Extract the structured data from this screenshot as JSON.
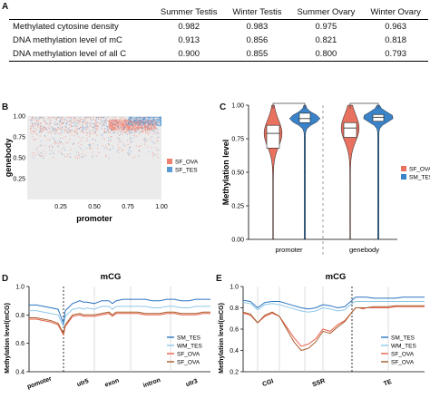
{
  "panels": {
    "a": "A",
    "b": "B",
    "c": "C",
    "d": "D",
    "e": "E"
  },
  "table": {
    "headers": [
      "",
      "Summer Testis",
      "Winter Testis",
      "Summer Ovary",
      "Winter Ovary"
    ],
    "rows": [
      [
        "Methylated cytosine density",
        "0.982",
        "0.983",
        "0.975",
        "0.963"
      ],
      [
        "DNA methylation level of mC",
        "0.913",
        "0.856",
        "0.821",
        "0.818"
      ],
      [
        "DNA methylation level of all C",
        "0.900",
        "0.855",
        "0.800",
        "0.793"
      ]
    ]
  },
  "chart_data": [
    {
      "id": "B",
      "type": "scatter",
      "xlabel": "promoter",
      "ylabel": "genebody",
      "xlim": [
        0,
        1
      ],
      "ylim": [
        0,
        1
      ],
      "xticks": [
        "0.25",
        "0.50",
        "0.75",
        "1.00"
      ],
      "yticks": [
        "0.25",
        "0.50",
        "0.75",
        "1.00"
      ],
      "legend_position": "right",
      "series": [
        {
          "name": "SF_OVA",
          "color": "#f08070",
          "density_center": [
            0.78,
            0.9
          ]
        },
        {
          "name": "SF_TES",
          "color": "#5b9bd5",
          "density_center": [
            0.92,
            0.95
          ]
        }
      ]
    },
    {
      "id": "C",
      "type": "violin",
      "ylabel": "Methylation level",
      "ylim": [
        0,
        1
      ],
      "yticks": [
        "0.00",
        "0.25",
        "0.50",
        "0.75",
        "1.00"
      ],
      "categories": [
        "promoter",
        "genebody"
      ],
      "legend_position": "right",
      "series": [
        {
          "name": "SF_OVA",
          "color": "#e8715f",
          "box": [
            [
              0.68,
              0.79,
              0.85
            ],
            [
              0.76,
              0.83,
              0.87
            ]
          ]
        },
        {
          "name": "SM_TES",
          "color": "#3a83c9",
          "box": [
            [
              0.87,
              0.9,
              0.94
            ],
            [
              0.88,
              0.91,
              0.93
            ]
          ]
        }
      ]
    },
    {
      "id": "D",
      "type": "line",
      "title": "mCG",
      "ylabel": "Methylation level(mCG)",
      "ylim": [
        0.4,
        1.0
      ],
      "yticks": [
        "0.4",
        "0.6",
        "0.8",
        "1.0"
      ],
      "xcategories": [
        "pomoter",
        "utr5",
        "exon",
        "intron",
        "utr3"
      ],
      "x": [
        0,
        4,
        8,
        12,
        16,
        19,
        20,
        24,
        28,
        30,
        32,
        36,
        40,
        44,
        46,
        48,
        52,
        56,
        60,
        64,
        68,
        72,
        76,
        80,
        84,
        88,
        92,
        96,
        100
      ],
      "series": [
        {
          "name": "SM_TES",
          "color": "#2b74c0",
          "values": [
            0.87,
            0.87,
            0.86,
            0.85,
            0.84,
            0.74,
            0.83,
            0.88,
            0.9,
            0.89,
            0.89,
            0.88,
            0.9,
            0.9,
            0.88,
            0.9,
            0.91,
            0.91,
            0.91,
            0.91,
            0.9,
            0.9,
            0.91,
            0.91,
            0.9,
            0.9,
            0.91,
            0.91,
            0.91
          ]
        },
        {
          "name": "WM_TES",
          "color": "#8fc7e8",
          "values": [
            0.83,
            0.83,
            0.82,
            0.81,
            0.8,
            0.72,
            0.79,
            0.84,
            0.85,
            0.84,
            0.85,
            0.84,
            0.86,
            0.86,
            0.84,
            0.86,
            0.86,
            0.86,
            0.86,
            0.86,
            0.85,
            0.85,
            0.86,
            0.86,
            0.85,
            0.85,
            0.86,
            0.86,
            0.86
          ]
        },
        {
          "name": "SF_OVA",
          "color": "#e8604c",
          "values": [
            0.77,
            0.77,
            0.76,
            0.75,
            0.73,
            0.66,
            0.72,
            0.79,
            0.8,
            0.79,
            0.79,
            0.79,
            0.8,
            0.81,
            0.79,
            0.81,
            0.81,
            0.81,
            0.81,
            0.8,
            0.8,
            0.8,
            0.81,
            0.81,
            0.8,
            0.8,
            0.8,
            0.81,
            0.81
          ]
        },
        {
          "name": "SF_OVA",
          "color": "#a85c2a",
          "values": [
            0.78,
            0.78,
            0.77,
            0.76,
            0.74,
            0.67,
            0.73,
            0.8,
            0.81,
            0.8,
            0.8,
            0.8,
            0.81,
            0.82,
            0.8,
            0.82,
            0.82,
            0.82,
            0.82,
            0.81,
            0.81,
            0.81,
            0.82,
            0.82,
            0.81,
            0.81,
            0.81,
            0.82,
            0.82
          ]
        }
      ]
    },
    {
      "id": "E",
      "type": "line",
      "title": "mCG",
      "ylabel": "Methylation level(mCG)",
      "ylim": [
        0.2,
        1.0
      ],
      "yticks": [
        "0.2",
        "0.4",
        "0.6",
        "0.8",
        "1.0"
      ],
      "xcategories": [
        "CGI",
        "SSR",
        "TE"
      ],
      "x": [
        0,
        4,
        8,
        12,
        16,
        20,
        24,
        28,
        32,
        36,
        40,
        44,
        48,
        52,
        56,
        60,
        62,
        64,
        66,
        68,
        72,
        76,
        80,
        84,
        88,
        92,
        96,
        100
      ],
      "series": [
        {
          "name": "SM_TES",
          "color": "#2b74c0",
          "values": [
            0.87,
            0.86,
            0.8,
            0.85,
            0.86,
            0.86,
            0.84,
            0.82,
            0.8,
            0.79,
            0.8,
            0.83,
            0.82,
            0.8,
            0.81,
            0.87,
            0.9,
            0.9,
            0.9,
            0.9,
            0.89,
            0.89,
            0.89,
            0.89,
            0.9,
            0.9,
            0.9,
            0.9
          ]
        },
        {
          "name": "WM_TES",
          "color": "#8fc7e8",
          "values": [
            0.85,
            0.84,
            0.78,
            0.83,
            0.84,
            0.83,
            0.81,
            0.79,
            0.77,
            0.76,
            0.77,
            0.8,
            0.79,
            0.77,
            0.78,
            0.84,
            0.86,
            0.86,
            0.86,
            0.86,
            0.86,
            0.86,
            0.86,
            0.86,
            0.86,
            0.86,
            0.86,
            0.86
          ]
        },
        {
          "name": "SF_OVA",
          "color": "#e8604c",
          "values": [
            0.75,
            0.73,
            0.66,
            0.72,
            0.75,
            0.72,
            0.62,
            0.52,
            0.44,
            0.46,
            0.51,
            0.6,
            0.58,
            0.64,
            0.68,
            0.76,
            0.8,
            0.8,
            0.79,
            0.8,
            0.8,
            0.8,
            0.8,
            0.81,
            0.81,
            0.81,
            0.81,
            0.81
          ]
        },
        {
          "name": "SF_OVA",
          "color": "#a85c2a",
          "values": [
            0.76,
            0.74,
            0.66,
            0.73,
            0.76,
            0.72,
            0.6,
            0.48,
            0.4,
            0.42,
            0.48,
            0.58,
            0.56,
            0.62,
            0.67,
            0.76,
            0.8,
            0.8,
            0.8,
            0.8,
            0.81,
            0.81,
            0.81,
            0.82,
            0.82,
            0.82,
            0.82,
            0.82
          ]
        }
      ]
    }
  ],
  "colors": {
    "ova": "#f08070",
    "tes": "#5b9bd5"
  }
}
